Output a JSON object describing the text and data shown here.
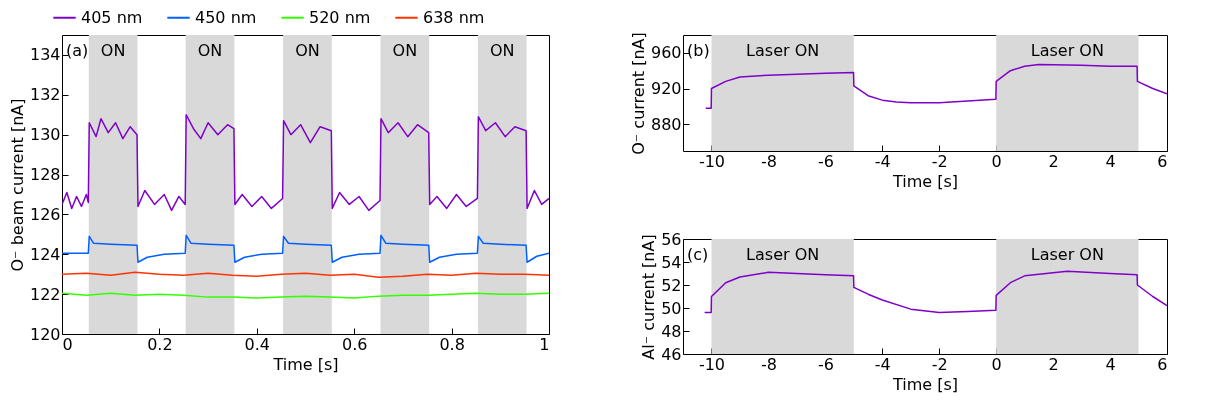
{
  "chart_data": [
    {
      "type": "line",
      "xlabel": "Time [s]",
      "ylabel": "O⁻ beam current [nA]",
      "xlim": [
        0,
        1
      ],
      "ylim": [
        120,
        135
      ],
      "xticks": [
        0,
        0.2,
        0.4,
        0.6,
        0.8,
        1
      ],
      "yticks": [
        120,
        122,
        124,
        126,
        128,
        130,
        132,
        134
      ],
      "legend": "top",
      "grid": false,
      "annotations": [
        "(a)"
      ],
      "bands": [
        {
          "axis": "x",
          "from": 0.055,
          "to": 0.155,
          "label": "ON",
          "color": "#d9d9d9"
        },
        {
          "axis": "x",
          "from": 0.254,
          "to": 0.354,
          "label": "ON",
          "color": "#d9d9d9"
        },
        {
          "axis": "x",
          "from": 0.454,
          "to": 0.554,
          "label": "ON",
          "color": "#d9d9d9"
        },
        {
          "axis": "x",
          "from": 0.654,
          "to": 0.754,
          "label": "ON",
          "color": "#d9d9d9"
        },
        {
          "axis": "x",
          "from": 0.854,
          "to": 0.954,
          "label": "ON",
          "color": "#d9d9d9"
        }
      ],
      "series": [
        {
          "name": "405 nm",
          "color": "#7f00c8",
          "x": [
            0,
            0.01,
            0.02,
            0.03,
            0.04,
            0.05,
            0.054,
            0.056,
            0.07,
            0.08,
            0.095,
            0.11,
            0.125,
            0.14,
            0.154,
            0.156,
            0.17,
            0.19,
            0.21,
            0.225,
            0.24,
            0.253,
            0.255,
            0.27,
            0.285,
            0.3,
            0.32,
            0.34,
            0.353,
            0.355,
            0.37,
            0.39,
            0.41,
            0.43,
            0.453,
            0.455,
            0.47,
            0.49,
            0.51,
            0.53,
            0.553,
            0.555,
            0.57,
            0.59,
            0.61,
            0.63,
            0.653,
            0.655,
            0.67,
            0.69,
            0.71,
            0.73,
            0.753,
            0.755,
            0.77,
            0.79,
            0.81,
            0.83,
            0.853,
            0.855,
            0.87,
            0.89,
            0.91,
            0.93,
            0.953,
            0.955,
            0.97,
            0.985,
            1
          ],
          "values": [
            126.5,
            127.1,
            126.3,
            126.9,
            126.4,
            127.0,
            126.6,
            130.6,
            129.9,
            130.8,
            130.1,
            130.6,
            129.8,
            130.4,
            130.0,
            126.4,
            127.2,
            126.5,
            127.0,
            126.2,
            126.9,
            126.5,
            131.0,
            130.3,
            129.8,
            130.6,
            130.0,
            130.5,
            130.3,
            126.5,
            127.0,
            126.4,
            126.9,
            126.3,
            126.8,
            130.7,
            130.0,
            130.5,
            129.6,
            130.4,
            130.2,
            126.3,
            127.1,
            126.5,
            126.9,
            126.2,
            126.7,
            130.8,
            130.1,
            130.6,
            129.9,
            130.5,
            130.1,
            126.5,
            126.9,
            126.3,
            127.0,
            126.4,
            126.8,
            130.9,
            130.2,
            130.6,
            129.9,
            130.4,
            130.2,
            126.3,
            127.2,
            126.5,
            126.8
          ]
        },
        {
          "name": "450 nm",
          "color": "#0060ff",
          "x": [
            0,
            0.054,
            0.056,
            0.065,
            0.1,
            0.154,
            0.156,
            0.175,
            0.21,
            0.253,
            0.255,
            0.265,
            0.3,
            0.353,
            0.355,
            0.375,
            0.41,
            0.453,
            0.455,
            0.465,
            0.5,
            0.553,
            0.555,
            0.575,
            0.61,
            0.653,
            0.655,
            0.665,
            0.7,
            0.753,
            0.755,
            0.775,
            0.81,
            0.853,
            0.855,
            0.865,
            0.9,
            0.953,
            0.955,
            0.975,
            1
          ],
          "values": [
            124.05,
            124.05,
            124.9,
            124.55,
            124.5,
            124.45,
            123.6,
            123.85,
            124.0,
            124.05,
            124.95,
            124.55,
            124.5,
            124.45,
            123.6,
            123.85,
            124.0,
            124.05,
            124.9,
            124.55,
            124.5,
            124.45,
            123.6,
            123.85,
            124.0,
            124.05,
            124.95,
            124.55,
            124.5,
            124.45,
            123.6,
            123.85,
            124.0,
            124.05,
            124.9,
            124.55,
            124.5,
            124.45,
            123.6,
            123.9,
            124.05
          ]
        },
        {
          "name": "520 nm",
          "color": "#33ff00",
          "x": [
            0,
            0.05,
            0.1,
            0.15,
            0.2,
            0.25,
            0.3,
            0.35,
            0.4,
            0.45,
            0.5,
            0.55,
            0.6,
            0.65,
            0.7,
            0.75,
            0.8,
            0.85,
            0.9,
            0.95,
            1
          ],
          "values": [
            122.05,
            121.95,
            122.05,
            121.95,
            122.0,
            121.95,
            121.85,
            121.85,
            121.8,
            121.85,
            121.9,
            121.85,
            121.8,
            121.9,
            121.95,
            121.95,
            122.0,
            122.05,
            122.0,
            122.0,
            122.05
          ]
        },
        {
          "name": "638 nm",
          "color": "#ff3300",
          "x": [
            0,
            0.05,
            0.1,
            0.15,
            0.2,
            0.25,
            0.3,
            0.35,
            0.4,
            0.45,
            0.5,
            0.55,
            0.6,
            0.65,
            0.7,
            0.75,
            0.8,
            0.85,
            0.9,
            0.95,
            1
          ],
          "values": [
            123.0,
            123.05,
            122.95,
            123.1,
            123.0,
            122.95,
            123.05,
            122.95,
            122.9,
            123.0,
            123.05,
            122.95,
            123.0,
            122.85,
            122.9,
            123.0,
            122.95,
            123.05,
            123.0,
            123.0,
            122.95
          ]
        }
      ]
    },
    {
      "type": "line",
      "xlabel": "Time [s]",
      "ylabel": "O⁻ current [nA]",
      "xlim": [
        -11,
        6
      ],
      "ylim": [
        850,
        980
      ],
      "xticks": [
        -10,
        -8,
        -6,
        -4,
        -2,
        0,
        2,
        4,
        6
      ],
      "yticks": [
        880,
        920,
        960
      ],
      "grid": false,
      "annotations": [
        "(b)"
      ],
      "bands": [
        {
          "axis": "x",
          "from": -10,
          "to": -5,
          "label": "Laser ON",
          "color": "#d9d9d9"
        },
        {
          "axis": "x",
          "from": 0,
          "to": 5,
          "label": "Laser ON",
          "color": "#d9d9d9"
        }
      ],
      "series": [
        {
          "color": "#7f00c8",
          "x": [
            -10.2,
            -10.01,
            -10,
            -9.5,
            -9,
            -8,
            -7,
            -6,
            -5.01,
            -5,
            -4.5,
            -4,
            -3.5,
            -3,
            -2,
            -1,
            -0.01,
            0,
            0.5,
            1,
            1.5,
            3,
            4,
            4.95,
            4.96,
            5.5,
            6
          ],
          "values": [
            898,
            898,
            920,
            928,
            933,
            935,
            936,
            937,
            938,
            923,
            912,
            907,
            905,
            904,
            904,
            906,
            908,
            928,
            940,
            945,
            947,
            946,
            945,
            945,
            928,
            920,
            914
          ]
        }
      ]
    },
    {
      "type": "line",
      "xlabel": "Time [s]",
      "ylabel": "Al⁻ current [nA]",
      "xlim": [
        -11,
        6
      ],
      "ylim": [
        46,
        56
      ],
      "xticks": [
        -10,
        -8,
        -6,
        -4,
        -2,
        0,
        2,
        4,
        6
      ],
      "yticks": [
        46,
        48,
        50,
        52,
        54,
        56
      ],
      "grid": false,
      "annotations": [
        "(c)"
      ],
      "bands": [
        {
          "axis": "x",
          "from": -10,
          "to": -5,
          "label": "Laser ON",
          "color": "#d9d9d9"
        },
        {
          "axis": "x",
          "from": 0,
          "to": 5,
          "label": "Laser ON",
          "color": "#d9d9d9"
        }
      ],
      "series": [
        {
          "color": "#7f00c8",
          "x": [
            -10.24,
            -10.01,
            -10,
            -9.5,
            -9,
            -8,
            -7,
            -6,
            -5.01,
            -5,
            -4.5,
            -4,
            -3,
            -2,
            -1,
            -0.01,
            0,
            0.5,
            1,
            2.5,
            4,
            4.95,
            4.96,
            5.5,
            6
          ],
          "values": [
            49.6,
            49.6,
            51.0,
            52.2,
            52.7,
            53.1,
            53.0,
            52.9,
            52.8,
            51.8,
            51.2,
            50.7,
            49.9,
            49.6,
            49.7,
            49.8,
            51.1,
            52.2,
            52.8,
            53.2,
            53.0,
            52.9,
            52.0,
            51.0,
            50.2
          ]
        }
      ]
    }
  ]
}
